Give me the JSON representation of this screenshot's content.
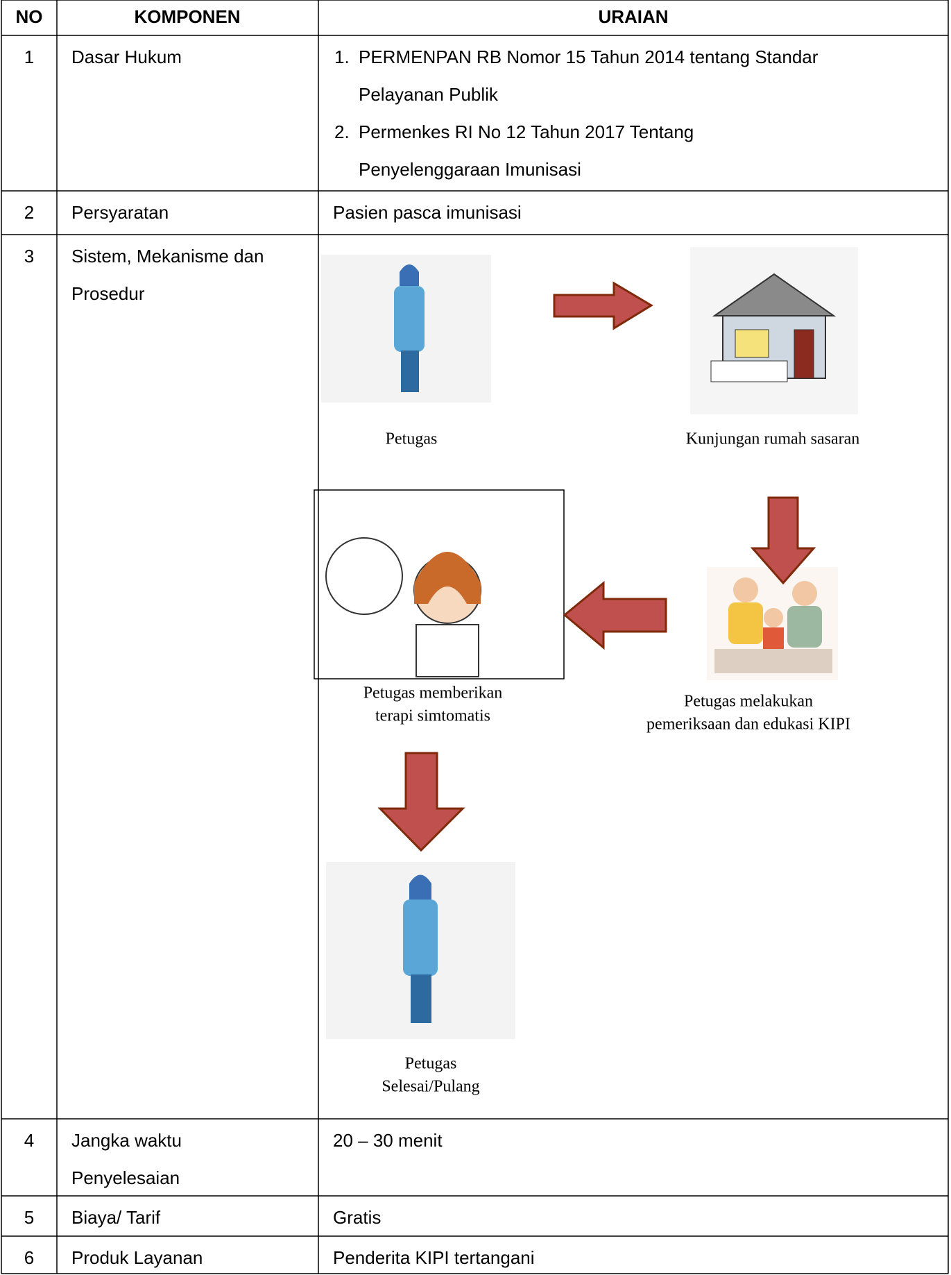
{
  "table": {
    "header": [
      "NO",
      "KOMPONEN",
      "URAIAN"
    ],
    "rows": [
      {
        "no": "1",
        "komponen": [
          "Dasar Hukum"
        ],
        "uraian_list": [
          {
            "num": "1.",
            "lines": [
              "PERMENPAN RB Nomor 15 Tahun 2014 tentang Standar",
              "Pelayanan Publik"
            ]
          },
          {
            "num": "2.",
            "lines": [
              "Permenkes RI No 12 Tahun 2017 Tentang",
              "Penyelenggaraan Imunisasi"
            ]
          }
        ]
      },
      {
        "no": "2",
        "komponen": [
          "Persyaratan"
        ],
        "uraian": [
          "Pasien pasca imunisasi"
        ]
      },
      {
        "no": "3",
        "komponen": [
          "Sistem, Mekanisme dan",
          "Prosedur"
        ]
      },
      {
        "no": "4",
        "komponen": [
          "Jangka waktu",
          "Penyelesaian"
        ],
        "uraian": [
          "20 – 30 menit"
        ]
      },
      {
        "no": "5",
        "komponen": [
          "Biaya/ Tarif"
        ],
        "uraian": [
          "Gratis"
        ]
      },
      {
        "no": "6",
        "komponen": [
          "Produk Layanan"
        ],
        "uraian": [
          "Penderita KIPI tertangani"
        ]
      }
    ]
  },
  "diagram": {
    "steps": [
      {
        "caption": [
          "Petugas"
        ]
      },
      {
        "caption": [
          "Kunjungan rumah sasaran"
        ]
      },
      {
        "caption": [
          "Petugas melakukan",
          "pemeriksaan dan edukasi KIPI"
        ]
      },
      {
        "caption": [
          "Petugas memberikan",
          "terapi simtomatis"
        ]
      },
      {
        "caption": [
          "Petugas",
          "Selesai/Pulang"
        ]
      }
    ]
  }
}
